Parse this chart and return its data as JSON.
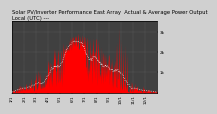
{
  "title": "Solar PV/Inverter Performance East Array  Actual & Average Power Output",
  "subtitle": "Local (UTC) ---",
  "background_color": "#d0d0d0",
  "plot_bg_color": "#404040",
  "fill_color": "#ff0000",
  "line_color": "#ff0000",
  "avg_line_color": "#ffffff",
  "grid_color": "#808080",
  "ylim": [
    0,
    3500
  ],
  "ytick_labels": [
    "",
    "1k",
    "2k",
    "3k"
  ],
  "ytick_vals": [
    0,
    1000,
    2000,
    3000
  ],
  "num_points": 365,
  "title_fontsize": 3.8,
  "axis_fontsize": 3.0
}
